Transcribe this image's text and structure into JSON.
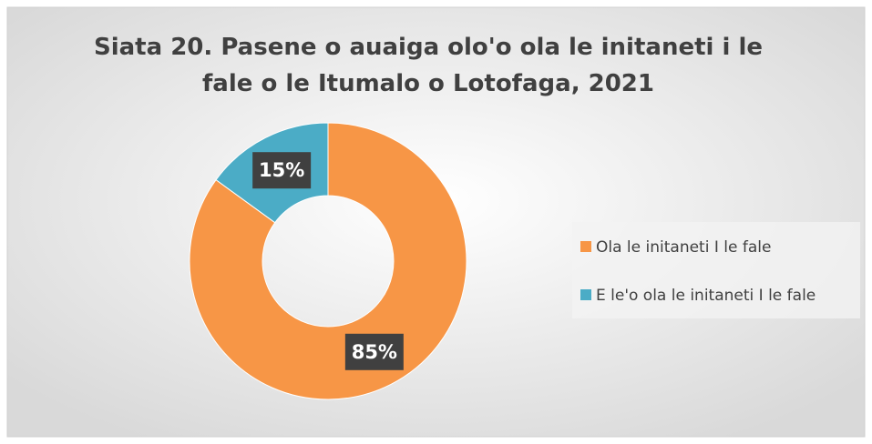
{
  "chart_data": {
    "type": "donut",
    "title": "Siata 20. Pasene o auaiga olo'o ola le initaneti i le fale o le Itumalo o Lotofaga, 2021",
    "categories": [
      "Ola le initaneti I le fale",
      "E le'o ola le initaneti I le fale"
    ],
    "values": [
      85,
      15
    ],
    "value_labels": [
      "85%",
      "15%"
    ],
    "colors": [
      "#f79646",
      "#4bacc6"
    ],
    "legend": "right"
  }
}
